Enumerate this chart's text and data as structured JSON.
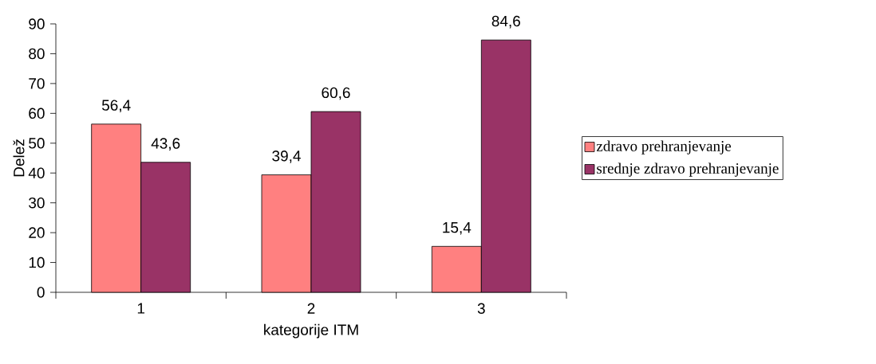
{
  "chart_data": {
    "type": "bar",
    "xlabel": "kategorije ITM",
    "ylabel": "Delež",
    "categories": [
      "1",
      "2",
      "3"
    ],
    "series": [
      {
        "name": "zdravo prehranjevanje",
        "color": "#ff8080",
        "values": [
          56.4,
          39.4,
          15.4
        ],
        "value_labels": [
          "56,4",
          "39,4",
          "15,4"
        ]
      },
      {
        "name": "srednje zdravo prehranjevanje",
        "color": "#993366",
        "values": [
          43.6,
          60.6,
          84.6
        ],
        "value_labels": [
          "43,6",
          "60,6",
          "84,6"
        ]
      }
    ],
    "ylim": [
      0,
      90
    ],
    "yticks": [
      0,
      10,
      20,
      30,
      40,
      50,
      60,
      70,
      80,
      90
    ],
    "grid": false,
    "legend": "right"
  }
}
